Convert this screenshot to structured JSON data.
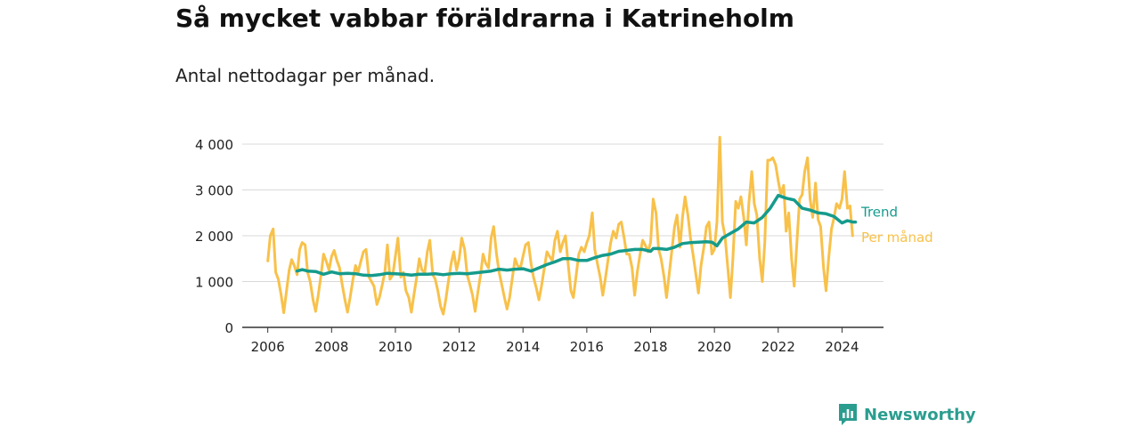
{
  "header": {
    "title": "Så mycket vabbar föräldrarna i Katrineholm",
    "subtitle": "Antal nettodagar per månad."
  },
  "brand": {
    "name": "Newsworthy",
    "icon": "newsworthy-logo-icon"
  },
  "colors": {
    "per_manad": "#f8c14a",
    "trend": "#159b8c",
    "grid": "#d9d9d9",
    "axis": "#333333",
    "brand": "#2a9d8f"
  },
  "chart_data": {
    "type": "line",
    "title": "Så mycket vabbar föräldrarna i Katrineholm",
    "subtitle": "Antal nettodagar per månad.",
    "xlabel": "",
    "ylabel": "",
    "x_ticks": [
      "2006",
      "2008",
      "2010",
      "2012",
      "2014",
      "2016",
      "2018",
      "2020",
      "2022",
      "2024"
    ],
    "y_ticks": [
      "0",
      "1 000",
      "2 000",
      "3 000",
      "4 000"
    ],
    "xlim": [
      2005.2,
      2025.3
    ],
    "ylim": [
      0,
      4000
    ],
    "grid": true,
    "legend": "inline-right",
    "series": [
      {
        "name": "Per månad",
        "color": "#f8c14a",
        "points": [
          [
            2006.0,
            1450
          ],
          [
            2006.08,
            2000
          ],
          [
            2006.17,
            2150
          ],
          [
            2006.25,
            1200
          ],
          [
            2006.33,
            1050
          ],
          [
            2006.42,
            700
          ],
          [
            2006.5,
            320
          ],
          [
            2006.58,
            750
          ],
          [
            2006.67,
            1250
          ],
          [
            2006.75,
            1480
          ],
          [
            2006.83,
            1350
          ],
          [
            2006.92,
            1150
          ],
          [
            2007.0,
            1700
          ],
          [
            2007.08,
            1850
          ],
          [
            2007.17,
            1800
          ],
          [
            2007.25,
            1200
          ],
          [
            2007.33,
            1000
          ],
          [
            2007.42,
            600
          ],
          [
            2007.5,
            350
          ],
          [
            2007.58,
            700
          ],
          [
            2007.67,
            1150
          ],
          [
            2007.75,
            1600
          ],
          [
            2007.83,
            1450
          ],
          [
            2007.92,
            1250
          ],
          [
            2008.0,
            1550
          ],
          [
            2008.08,
            1680
          ],
          [
            2008.17,
            1450
          ],
          [
            2008.25,
            1300
          ],
          [
            2008.33,
            950
          ],
          [
            2008.42,
            600
          ],
          [
            2008.5,
            330
          ],
          [
            2008.58,
            650
          ],
          [
            2008.67,
            1050
          ],
          [
            2008.75,
            1350
          ],
          [
            2008.83,
            1200
          ],
          [
            2008.92,
            1450
          ],
          [
            2009.0,
            1650
          ],
          [
            2009.08,
            1700
          ],
          [
            2009.17,
            1100
          ],
          [
            2009.25,
            1000
          ],
          [
            2009.33,
            900
          ],
          [
            2009.42,
            500
          ],
          [
            2009.5,
            650
          ],
          [
            2009.58,
            900
          ],
          [
            2009.67,
            1200
          ],
          [
            2009.75,
            1800
          ],
          [
            2009.83,
            1050
          ],
          [
            2009.92,
            1150
          ],
          [
            2010.0,
            1550
          ],
          [
            2010.08,
            1950
          ],
          [
            2010.17,
            1100
          ],
          [
            2010.25,
            1200
          ],
          [
            2010.33,
            800
          ],
          [
            2010.42,
            650
          ],
          [
            2010.5,
            330
          ],
          [
            2010.58,
            700
          ],
          [
            2010.67,
            1100
          ],
          [
            2010.75,
            1500
          ],
          [
            2010.83,
            1250
          ],
          [
            2010.92,
            1200
          ],
          [
            2011.0,
            1650
          ],
          [
            2011.08,
            1900
          ],
          [
            2011.17,
            1150
          ],
          [
            2011.25,
            1050
          ],
          [
            2011.33,
            800
          ],
          [
            2011.42,
            450
          ],
          [
            2011.5,
            290
          ],
          [
            2011.58,
            600
          ],
          [
            2011.67,
            1050
          ],
          [
            2011.75,
            1400
          ],
          [
            2011.83,
            1650
          ],
          [
            2011.92,
            1250
          ],
          [
            2012.0,
            1500
          ],
          [
            2012.08,
            1950
          ],
          [
            2012.17,
            1700
          ],
          [
            2012.25,
            1150
          ],
          [
            2012.33,
            950
          ],
          [
            2012.42,
            700
          ],
          [
            2012.5,
            350
          ],
          [
            2012.58,
            750
          ],
          [
            2012.67,
            1150
          ],
          [
            2012.75,
            1600
          ],
          [
            2012.83,
            1400
          ],
          [
            2012.92,
            1300
          ],
          [
            2013.0,
            1950
          ],
          [
            2013.08,
            2200
          ],
          [
            2013.17,
            1600
          ],
          [
            2013.25,
            1200
          ],
          [
            2013.33,
            950
          ],
          [
            2013.42,
            650
          ],
          [
            2013.5,
            400
          ],
          [
            2013.58,
            650
          ],
          [
            2013.67,
            1100
          ],
          [
            2013.75,
            1500
          ],
          [
            2013.83,
            1350
          ],
          [
            2013.92,
            1300
          ],
          [
            2014.0,
            1550
          ],
          [
            2014.08,
            1800
          ],
          [
            2014.17,
            1850
          ],
          [
            2014.25,
            1400
          ],
          [
            2014.33,
            1100
          ],
          [
            2014.42,
            850
          ],
          [
            2014.5,
            600
          ],
          [
            2014.58,
            900
          ],
          [
            2014.67,
            1300
          ],
          [
            2014.75,
            1650
          ],
          [
            2014.83,
            1550
          ],
          [
            2014.92,
            1450
          ],
          [
            2015.0,
            1900
          ],
          [
            2015.08,
            2100
          ],
          [
            2015.17,
            1650
          ],
          [
            2015.25,
            1850
          ],
          [
            2015.33,
            2000
          ],
          [
            2015.42,
            1350
          ],
          [
            2015.5,
            800
          ],
          [
            2015.58,
            650
          ],
          [
            2015.67,
            1150
          ],
          [
            2015.75,
            1600
          ],
          [
            2015.83,
            1750
          ],
          [
            2015.92,
            1650
          ],
          [
            2016.0,
            1850
          ],
          [
            2016.08,
            2000
          ],
          [
            2016.17,
            2500
          ],
          [
            2016.25,
            1700
          ],
          [
            2016.33,
            1400
          ],
          [
            2016.42,
            1100
          ],
          [
            2016.5,
            700
          ],
          [
            2016.58,
            1050
          ],
          [
            2016.67,
            1500
          ],
          [
            2016.75,
            1850
          ],
          [
            2016.83,
            2100
          ],
          [
            2016.92,
            1950
          ],
          [
            2017.0,
            2250
          ],
          [
            2017.08,
            2300
          ],
          [
            2017.17,
            1950
          ],
          [
            2017.25,
            1600
          ],
          [
            2017.33,
            1600
          ],
          [
            2017.42,
            1300
          ],
          [
            2017.5,
            700
          ],
          [
            2017.58,
            1200
          ],
          [
            2017.67,
            1600
          ],
          [
            2017.75,
            1900
          ],
          [
            2017.83,
            1800
          ],
          [
            2017.92,
            1650
          ],
          [
            2018.0,
            1850
          ],
          [
            2018.08,
            2800
          ],
          [
            2018.17,
            2500
          ],
          [
            2018.25,
            1700
          ],
          [
            2018.33,
            1500
          ],
          [
            2018.42,
            1100
          ],
          [
            2018.5,
            650
          ],
          [
            2018.58,
            1150
          ],
          [
            2018.67,
            1700
          ],
          [
            2018.75,
            2200
          ],
          [
            2018.83,
            2450
          ],
          [
            2018.92,
            1750
          ],
          [
            2019.0,
            2400
          ],
          [
            2019.08,
            2850
          ],
          [
            2019.17,
            2450
          ],
          [
            2019.25,
            1950
          ],
          [
            2019.33,
            1600
          ],
          [
            2019.42,
            1150
          ],
          [
            2019.5,
            750
          ],
          [
            2019.58,
            1350
          ],
          [
            2019.67,
            1750
          ],
          [
            2019.75,
            2200
          ],
          [
            2019.83,
            2300
          ],
          [
            2019.92,
            1600
          ],
          [
            2020.0,
            1700
          ],
          [
            2020.08,
            2300
          ],
          [
            2020.17,
            4150
          ],
          [
            2020.25,
            2300
          ],
          [
            2020.33,
            2000
          ],
          [
            2020.42,
            1300
          ],
          [
            2020.5,
            650
          ],
          [
            2020.58,
            1500
          ],
          [
            2020.67,
            2750
          ],
          [
            2020.75,
            2600
          ],
          [
            2020.83,
            2850
          ],
          [
            2020.92,
            2400
          ],
          [
            2021.0,
            1800
          ],
          [
            2021.08,
            2700
          ],
          [
            2021.17,
            3400
          ],
          [
            2021.25,
            2700
          ],
          [
            2021.33,
            2450
          ],
          [
            2021.42,
            1500
          ],
          [
            2021.5,
            1000
          ],
          [
            2021.58,
            1850
          ],
          [
            2021.67,
            3650
          ],
          [
            2021.75,
            3650
          ],
          [
            2021.83,
            3700
          ],
          [
            2021.92,
            3550
          ],
          [
            2022.0,
            3200
          ],
          [
            2022.08,
            2900
          ],
          [
            2022.17,
            3100
          ],
          [
            2022.25,
            2100
          ],
          [
            2022.33,
            2500
          ],
          [
            2022.42,
            1500
          ],
          [
            2022.5,
            900
          ],
          [
            2022.58,
            1800
          ],
          [
            2022.67,
            2800
          ],
          [
            2022.75,
            2900
          ],
          [
            2022.83,
            3400
          ],
          [
            2022.92,
            3700
          ],
          [
            2023.0,
            2800
          ],
          [
            2023.08,
            2400
          ],
          [
            2023.17,
            3150
          ],
          [
            2023.25,
            2350
          ],
          [
            2023.33,
            2200
          ],
          [
            2023.42,
            1300
          ],
          [
            2023.5,
            800
          ],
          [
            2023.58,
            1500
          ],
          [
            2023.67,
            2150
          ],
          [
            2023.75,
            2400
          ],
          [
            2023.83,
            2700
          ],
          [
            2023.92,
            2600
          ],
          [
            2024.0,
            2800
          ],
          [
            2024.08,
            3400
          ],
          [
            2024.17,
            2600
          ],
          [
            2024.25,
            2650
          ],
          [
            2024.33,
            2000
          ]
        ]
      },
      {
        "name": "Trend",
        "color": "#159b8c",
        "points": [
          [
            2006.92,
            1230
          ],
          [
            2007.08,
            1260
          ],
          [
            2007.25,
            1230
          ],
          [
            2007.5,
            1220
          ],
          [
            2007.75,
            1160
          ],
          [
            2008.0,
            1210
          ],
          [
            2008.25,
            1170
          ],
          [
            2008.5,
            1180
          ],
          [
            2008.75,
            1170
          ],
          [
            2009.0,
            1140
          ],
          [
            2009.25,
            1130
          ],
          [
            2009.5,
            1150
          ],
          [
            2009.75,
            1180
          ],
          [
            2010.0,
            1170
          ],
          [
            2010.25,
            1160
          ],
          [
            2010.5,
            1140
          ],
          [
            2010.75,
            1160
          ],
          [
            2011.0,
            1160
          ],
          [
            2011.25,
            1170
          ],
          [
            2011.5,
            1150
          ],
          [
            2011.75,
            1170
          ],
          [
            2012.0,
            1180
          ],
          [
            2012.25,
            1170
          ],
          [
            2012.5,
            1190
          ],
          [
            2012.75,
            1210
          ],
          [
            2013.0,
            1230
          ],
          [
            2013.25,
            1270
          ],
          [
            2013.5,
            1250
          ],
          [
            2013.75,
            1270
          ],
          [
            2014.0,
            1280
          ],
          [
            2014.25,
            1230
          ],
          [
            2014.5,
            1300
          ],
          [
            2014.75,
            1370
          ],
          [
            2015.0,
            1430
          ],
          [
            2015.25,
            1500
          ],
          [
            2015.5,
            1500
          ],
          [
            2015.75,
            1460
          ],
          [
            2016.0,
            1460
          ],
          [
            2016.25,
            1520
          ],
          [
            2016.5,
            1570
          ],
          [
            2016.75,
            1600
          ],
          [
            2017.0,
            1660
          ],
          [
            2017.25,
            1680
          ],
          [
            2017.5,
            1700
          ],
          [
            2017.75,
            1700
          ],
          [
            2018.0,
            1660
          ],
          [
            2018.08,
            1720
          ],
          [
            2018.25,
            1720
          ],
          [
            2018.5,
            1700
          ],
          [
            2018.75,
            1750
          ],
          [
            2019.0,
            1830
          ],
          [
            2019.25,
            1850
          ],
          [
            2019.5,
            1860
          ],
          [
            2019.75,
            1870
          ],
          [
            2019.92,
            1860
          ],
          [
            2020.08,
            1780
          ],
          [
            2020.25,
            1950
          ],
          [
            2020.5,
            2050
          ],
          [
            2020.75,
            2150
          ],
          [
            2021.0,
            2300
          ],
          [
            2021.25,
            2280
          ],
          [
            2021.5,
            2400
          ],
          [
            2021.75,
            2600
          ],
          [
            2022.0,
            2880
          ],
          [
            2022.25,
            2820
          ],
          [
            2022.5,
            2780
          ],
          [
            2022.75,
            2600
          ],
          [
            2023.0,
            2560
          ],
          [
            2023.25,
            2500
          ],
          [
            2023.5,
            2480
          ],
          [
            2023.75,
            2420
          ],
          [
            2024.0,
            2280
          ],
          [
            2024.17,
            2330
          ],
          [
            2024.33,
            2300
          ],
          [
            2024.42,
            2300
          ]
        ]
      }
    ]
  }
}
